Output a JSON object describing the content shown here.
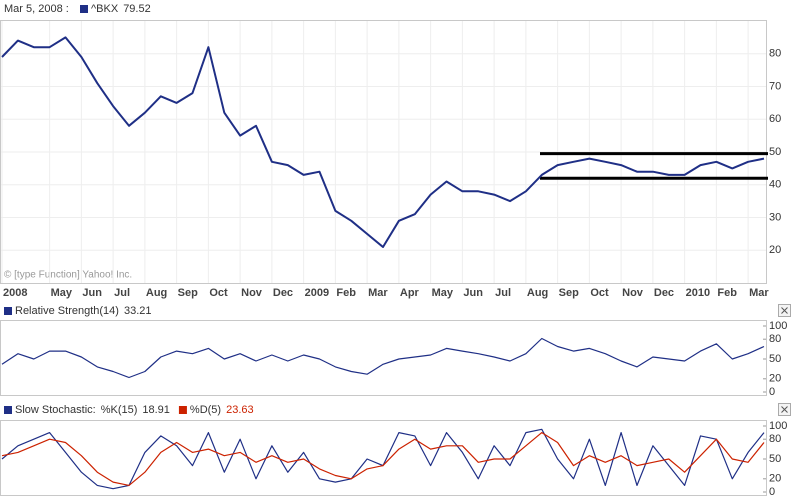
{
  "chart_data": [
    {
      "type": "line",
      "date_label": "Mar 5, 2008 :",
      "categories": [
        "2008",
        null,
        null,
        "May",
        null,
        "Jun",
        null,
        "Jul",
        null,
        "Aug",
        null,
        "Sep",
        null,
        "Oct",
        null,
        "Nov",
        null,
        "Dec",
        null,
        "2009",
        null,
        "Feb",
        null,
        "Mar",
        null,
        "Apr",
        null,
        "May",
        null,
        "Jun",
        null,
        "Jul",
        null,
        "Aug",
        null,
        "Sep",
        null,
        "Oct",
        null,
        "Nov",
        null,
        "Dec",
        null,
        "2010",
        null,
        "Feb",
        null,
        "Mar",
        null
      ],
      "series": [
        {
          "name": "^BKX",
          "color": "#1f2f86",
          "current_value": 79.52,
          "values": [
            79,
            84,
            82,
            82,
            85,
            79,
            71,
            64,
            58,
            62,
            67,
            65,
            68,
            82,
            62,
            55,
            58,
            47,
            46,
            43,
            44,
            32,
            29,
            25,
            21,
            29,
            31,
            37,
            41,
            38,
            38,
            37,
            35,
            38,
            43,
            46,
            47,
            48,
            47,
            46,
            44,
            44,
            43,
            43,
            46,
            47,
            45,
            47,
            48
          ]
        }
      ],
      "ylim": [
        10,
        90
      ],
      "yticks": [
        20,
        30,
        40,
        50,
        60,
        70,
        80
      ],
      "grid": true,
      "reference_lines": [
        {
          "value": 49.5,
          "color": "#000000"
        },
        {
          "value": 42,
          "color": "#000000"
        }
      ],
      "credit": "© [type Function] Yahoo! Inc."
    },
    {
      "type": "line",
      "series": [
        {
          "name": "Relative Strength(14)",
          "color": "#1f2f86",
          "current_value": 33.21,
          "values": [
            42,
            58,
            50,
            62,
            62,
            53,
            38,
            31,
            22,
            31,
            53,
            62,
            58,
            66,
            50,
            58,
            47,
            56,
            47,
            56,
            50,
            38,
            31,
            27,
            42,
            50,
            53,
            56,
            66,
            62,
            58,
            53,
            47,
            58,
            81,
            69,
            62,
            66,
            58,
            47,
            38,
            53,
            50,
            47,
            62,
            73,
            50,
            58,
            69
          ]
        }
      ],
      "ylim": [
        0,
        100
      ],
      "yticks": [
        0,
        20,
        50,
        80,
        100
      ]
    },
    {
      "type": "line",
      "title": "Slow Stochastic:",
      "series": [
        {
          "name": "%K(15)",
          "color": "#1f2f86",
          "current_value": 18.91,
          "values": [
            50,
            70,
            80,
            90,
            60,
            30,
            10,
            5,
            10,
            60,
            85,
            70,
            40,
            90,
            30,
            80,
            20,
            70,
            30,
            60,
            20,
            15,
            20,
            50,
            40,
            90,
            85,
            40,
            90,
            60,
            20,
            70,
            40,
            90,
            95,
            50,
            20,
            80,
            10,
            90,
            10,
            70,
            40,
            10,
            85,
            80,
            20,
            60,
            90
          ]
        },
        {
          "name": "%D(5)",
          "color": "#cc2200",
          "current_value": 23.63,
          "values": [
            55,
            60,
            70,
            80,
            75,
            55,
            30,
            15,
            10,
            30,
            60,
            75,
            60,
            65,
            55,
            60,
            45,
            55,
            45,
            50,
            35,
            25,
            20,
            35,
            40,
            65,
            80,
            65,
            70,
            70,
            45,
            50,
            50,
            70,
            90,
            75,
            40,
            55,
            45,
            55,
            40,
            45,
            50,
            30,
            55,
            80,
            50,
            45,
            75
          ]
        }
      ],
      "ylim": [
        0,
        100
      ],
      "yticks": [
        0,
        20,
        50,
        80,
        100
      ]
    }
  ]
}
